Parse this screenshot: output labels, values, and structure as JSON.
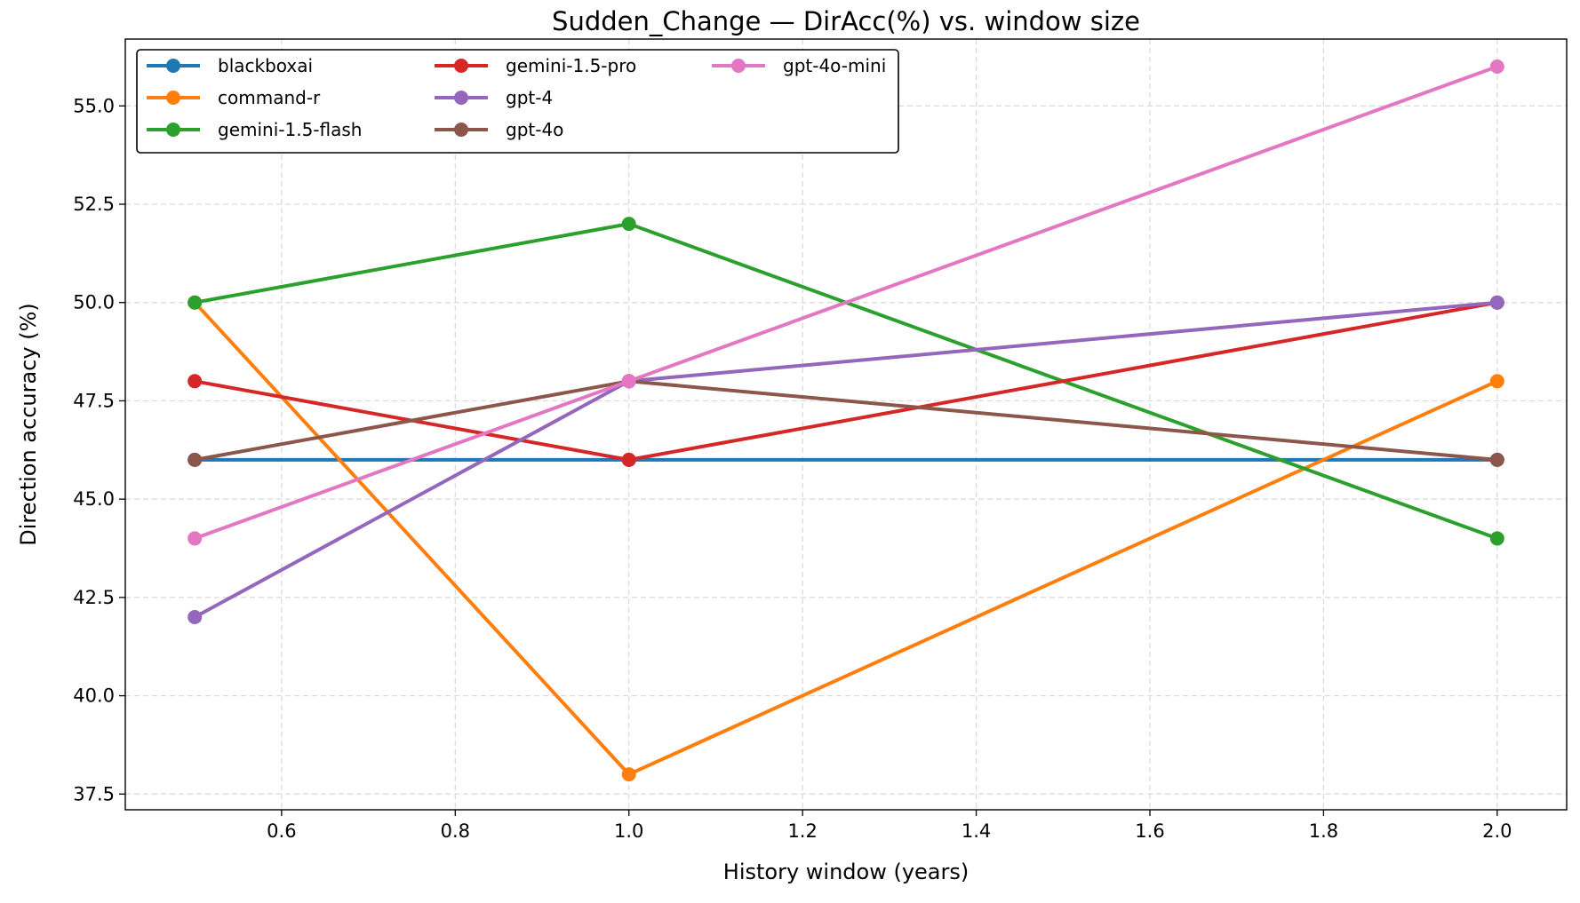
{
  "chart_data": {
    "type": "line",
    "title": "Sudden_Change — DirAcc(%) vs. window size",
    "xlabel": "History window (years)",
    "ylabel": "Direction accuracy (%)",
    "xlim": [
      0.42,
      2.08
    ],
    "ylim": [
      37.1,
      56.7
    ],
    "xticks": [
      0.6,
      0.8,
      1.0,
      1.2,
      1.4,
      1.6,
      1.8,
      2.0
    ],
    "xtick_labels": [
      "0.6",
      "0.8",
      "1.0",
      "1.2",
      "1.4",
      "1.6",
      "1.8",
      "2.0"
    ],
    "yticks": [
      37.5,
      40.0,
      42.5,
      45.0,
      47.5,
      50.0,
      52.5,
      55.0
    ],
    "ytick_labels": [
      "37.5",
      "40.0",
      "42.5",
      "45.0",
      "47.5",
      "50.0",
      "52.5",
      "55.0"
    ],
    "grid": true,
    "legend_position": "top-left",
    "x": [
      0.5,
      1.0,
      2.0
    ],
    "series": [
      {
        "name": "blackboxai",
        "color": "#1f77b4",
        "values": [
          46,
          46,
          46
        ]
      },
      {
        "name": "command-r",
        "color": "#ff7f0e",
        "values": [
          50,
          38,
          48
        ]
      },
      {
        "name": "gemini-1.5-flash",
        "color": "#2ca02c",
        "values": [
          50,
          52,
          44
        ]
      },
      {
        "name": "gemini-1.5-pro",
        "color": "#d62728",
        "values": [
          48,
          46,
          50
        ]
      },
      {
        "name": "gpt-4",
        "color": "#9467bd",
        "values": [
          42,
          48,
          50
        ]
      },
      {
        "name": "gpt-4o",
        "color": "#8c564b",
        "values": [
          46,
          48,
          46
        ]
      },
      {
        "name": "gpt-4o-mini",
        "color": "#e377c2",
        "values": [
          44,
          48,
          56
        ]
      }
    ]
  }
}
